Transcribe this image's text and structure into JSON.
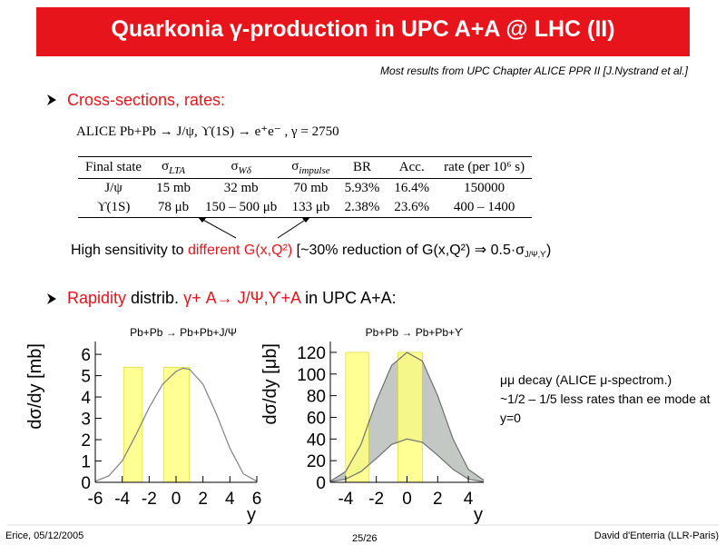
{
  "header": {
    "title": "Quarkonia γ-production in UPC A+A @ LHC (II)",
    "note": "Most results from UPC Chapter ALICE PPR II [J.Nystrand et al.]"
  },
  "bullet1": "Cross-sections, rates:",
  "reaction": "ALICE Pb+Pb → J/ψ, ϒ(1S) → e⁺e⁻ , γ = 2750",
  "table": {
    "header": [
      {
        "text": "Final state"
      },
      {
        "text": "σ",
        "sub": "LTA"
      },
      {
        "text": "σ",
        "sub": "Wδ"
      },
      {
        "text": "σ",
        "sub": "impulse"
      },
      {
        "text": "BR"
      },
      {
        "text": "Acc."
      },
      {
        "text": "rate (per 10⁶ s)"
      }
    ],
    "rows": [
      [
        "J/ψ",
        "15 mb",
        "32 mb",
        "70 mb",
        "5.93%",
        "16.4%",
        "150000"
      ],
      [
        "ϒ(1S)",
        "78 μb",
        "150 – 500 μb",
        "133 μb",
        "2.38%",
        "23.6%",
        "400 – 1400"
      ]
    ]
  },
  "sensitivity": [
    {
      "text": "High sensitivity to "
    },
    {
      "text": "different G(x,Q²)",
      "red": true
    },
    {
      "text": " [~30% reduction of G(x,Q²) ⇒ 0.5·σ"
    },
    {
      "text": "J/Ψ,ϒ",
      "sub": true
    },
    {
      "text": ")"
    }
  ],
  "bullet2": [
    {
      "text": "Rapidity",
      "red": true
    },
    {
      "text": " distrib. "
    },
    {
      "text": "γ+ A→ J/Ψ,ϒ+A",
      "red": true
    },
    {
      "text": " in UPC A+A:"
    }
  ],
  "side_note": [
    "μμ decay (ALICE μ-spectrom.)",
    "~1/2 – 1/5 less rates than ee mode at y=0"
  ],
  "footer": {
    "left": "Erice, 05/12/2005",
    "center": "25/26",
    "right": "David d'Enterria (LLR-Paris)"
  },
  "chart_data": [
    {
      "type": "line",
      "title": "Pb+Pb → Pb+Pb+J/Ψ",
      "x_label": "y",
      "y_label": "dσ/dy [mb]",
      "xlim": [
        -6,
        6
      ],
      "xticks": [
        -6,
        -4,
        -2,
        0,
        2,
        4,
        6
      ],
      "ylim": [
        0,
        6.6
      ],
      "yticks": [
        0,
        1,
        2,
        3,
        4,
        5,
        6
      ],
      "x": [
        -6,
        -5,
        -4,
        -3,
        -2,
        -1,
        0,
        0.5,
        1,
        2,
        3,
        4,
        5,
        6
      ],
      "series": [
        {
          "color": "#808080",
          "values": [
            0.05,
            0.3,
            1.0,
            2.2,
            3.5,
            4.6,
            5.2,
            5.35,
            5.3,
            4.6,
            3.2,
            1.6,
            0.4,
            0.05
          ]
        }
      ],
      "bands": [
        {
          "x": [
            -3.9,
            -2.5
          ],
          "top": 5.4
        },
        {
          "x": [
            -0.9,
            1.0
          ],
          "top": 5.4
        }
      ],
      "band_color": "#ffff80"
    },
    {
      "type": "line",
      "title": "Pb+Pb → Pb+Pb+ϒ",
      "x_label": "y",
      "y_label": "dσ/dy [μb]",
      "xlim": [
        -5,
        5
      ],
      "xticks": [
        -4,
        -2,
        0,
        2,
        4
      ],
      "ylim": [
        0,
        130
      ],
      "yticks": [
        0,
        20,
        40,
        60,
        80,
        100,
        120
      ],
      "x": [
        -5,
        -4,
        -3,
        -2,
        -1,
        0,
        1,
        2,
        3,
        4,
        5
      ],
      "series": [
        {
          "color": "#707070",
          "values": [
            1,
            10,
            35,
            75,
            108,
            120,
            112,
            80,
            40,
            12,
            2
          ]
        },
        {
          "color": "#707070",
          "values": [
            0.5,
            3,
            10,
            22,
            35,
            40,
            37,
            25,
            12,
            3,
            0.5
          ]
        }
      ],
      "fill_between": true,
      "fill_color": "#c4c8c4",
      "bands": [
        {
          "x": [
            -4,
            -2.5
          ],
          "top": 120
        },
        {
          "x": [
            -0.6,
            1.0
          ],
          "top": 120
        }
      ],
      "band_color": "#ffff80"
    }
  ]
}
